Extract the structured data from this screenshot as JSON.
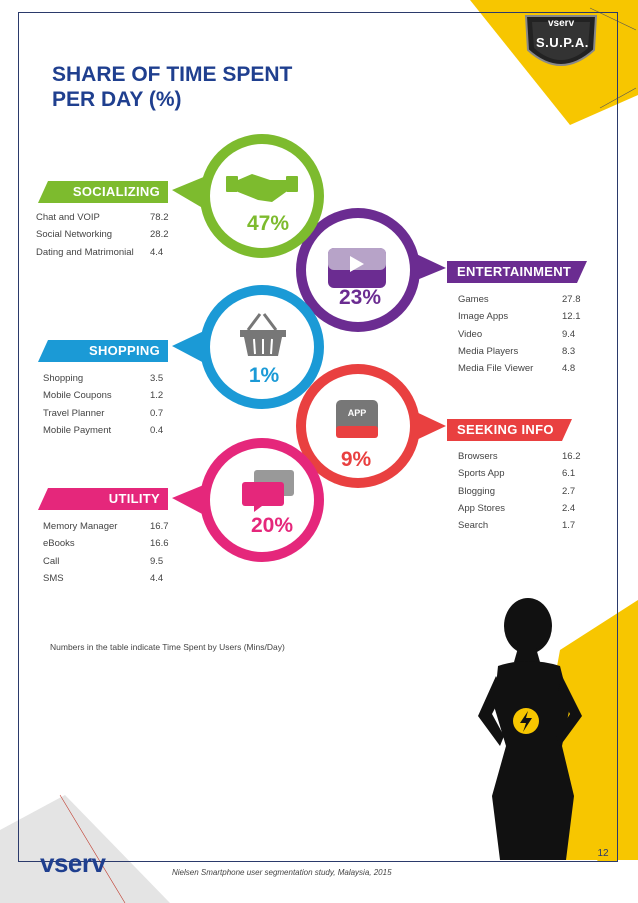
{
  "title_line1": "SHARE OF TIME SPENT",
  "title_line2": "PER DAY (%)",
  "badge": {
    "brand": "vserv",
    "name": "S.U.P.A."
  },
  "categories": [
    {
      "name": "SOCIALIZING",
      "percent": "47%",
      "color": "#7dbb2e",
      "icon": "handshake-icon",
      "items": [
        {
          "label": "Chat and VOIP",
          "value": "78.2"
        },
        {
          "label": "Social Networking",
          "value": "28.2"
        },
        {
          "label": "Dating and Matrimonial",
          "value": "4.4"
        }
      ]
    },
    {
      "name": "ENTERTAINMENT",
      "percent": "23%",
      "color": "#6b2c91",
      "icon": "video-play-icon",
      "items": [
        {
          "label": "Games",
          "value": "27.8"
        },
        {
          "label": "Image Apps",
          "value": "12.1"
        },
        {
          "label": "Video",
          "value": "9.4"
        },
        {
          "label": "Media Players",
          "value": "8.3"
        },
        {
          "label": "Media File Viewer",
          "value": "4.8"
        }
      ]
    },
    {
      "name": "SHOPPING",
      "percent": "1%",
      "color": "#1b9ad6",
      "icon": "shopping-basket-icon",
      "items": [
        {
          "label": "Shopping",
          "value": "3.5"
        },
        {
          "label": "Mobile Coupons",
          "value": "1.2"
        },
        {
          "label": "Travel Planner",
          "value": "0.7"
        },
        {
          "label": "Mobile Payment",
          "value": "0.4"
        }
      ]
    },
    {
      "name": "SEEKING INFO",
      "percent": "9%",
      "color": "#e94040",
      "icon": "app-icon",
      "icon_text": "APP",
      "items": [
        {
          "label": "Browsers",
          "value": "16.2"
        },
        {
          "label": "Sports App",
          "value": "6.1"
        },
        {
          "label": "Blogging",
          "value": "2.7"
        },
        {
          "label": "App Stores",
          "value": "2.4"
        },
        {
          "label": "Search",
          "value": "1.7"
        }
      ]
    },
    {
      "name": "UTILITY",
      "percent": "20%",
      "color": "#e5277b",
      "icon": "chat-bubbles-icon",
      "items": [
        {
          "label": "Memory Manager",
          "value": "16.7"
        },
        {
          "label": "eBooks",
          "value": "16.6"
        },
        {
          "label": "Call",
          "value": "9.5"
        },
        {
          "label": "SMS",
          "value": "4.4"
        }
      ]
    }
  ],
  "note": "Numbers in the table indicate Time Spent by Users (Mins/Day)",
  "source": "Nielsen Smartphone user segmentation study, Malaysia, 2015",
  "footer_logo": "vserv",
  "page_number": "12",
  "colors": {
    "title": "#1f3f8f",
    "accent_yellow": "#f7c600",
    "frame": "#2b3a6b"
  }
}
